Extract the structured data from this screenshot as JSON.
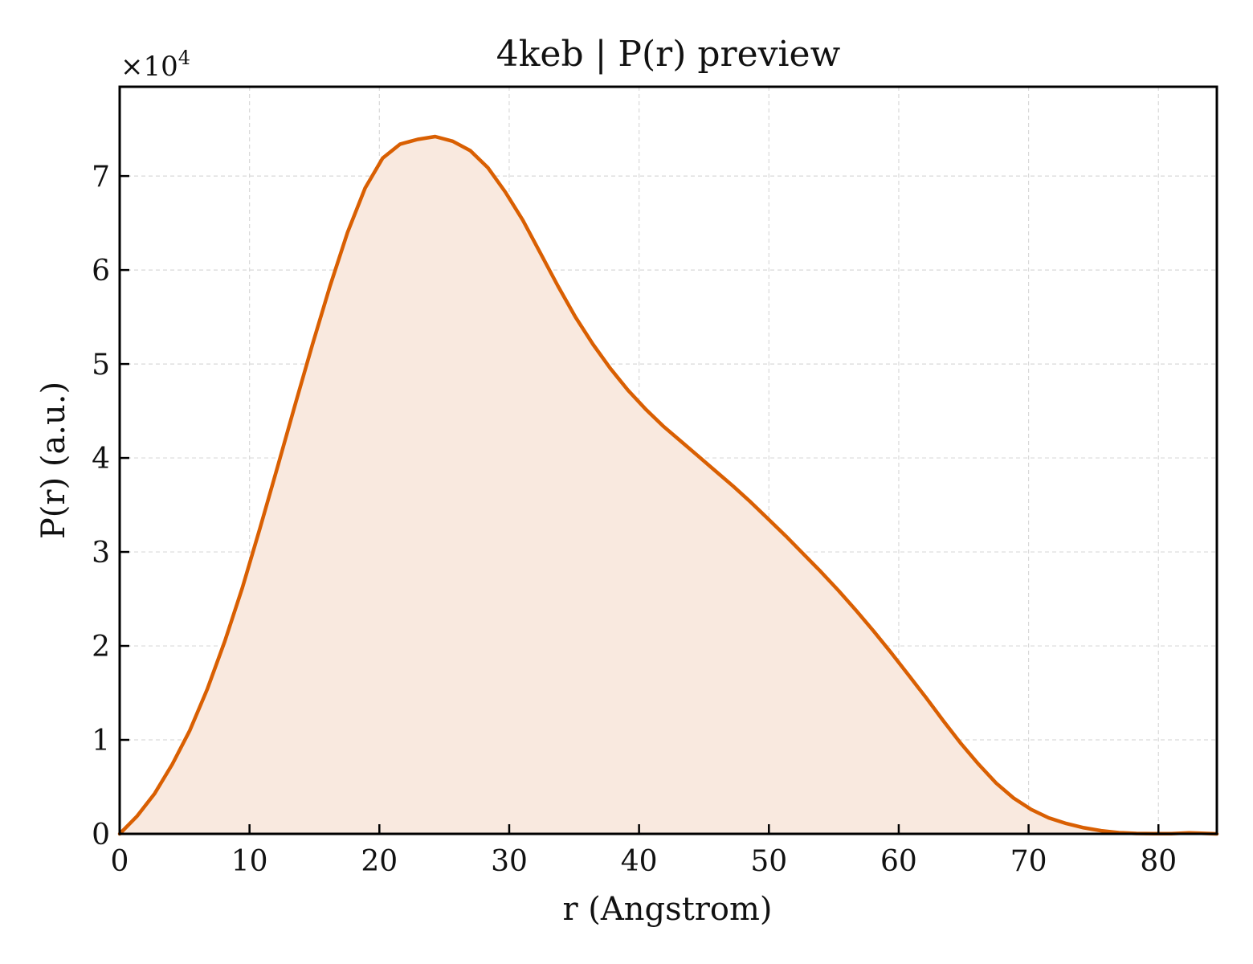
{
  "chart_data": {
    "type": "area",
    "title": "4keb | P(r) preview",
    "xlabel": "r (Angstrom)",
    "ylabel": "P(r) (a.u.)",
    "y_multiplier": "×10",
    "y_multiplier_exponent": "4",
    "xlim": [
      0,
      84.5
    ],
    "ylim": [
      0,
      79500
    ],
    "x_ticks": [
      0,
      10,
      20,
      30,
      40,
      50,
      60,
      70,
      80
    ],
    "y_ticks": [
      0,
      10000,
      20000,
      30000,
      40000,
      50000,
      60000,
      70000
    ],
    "y_tick_labels": [
      "0",
      "1",
      "2",
      "3",
      "4",
      "5",
      "6",
      "7"
    ],
    "grid": true,
    "colors": {
      "line": "#d95f02",
      "fill": "#f9e9df",
      "grid": "#d9d9d9"
    },
    "series": [
      {
        "x": [
          0,
          1.35,
          2.7,
          4.05,
          5.4,
          6.75,
          8.1,
          9.45,
          10.8,
          12.15,
          13.5,
          14.85,
          16.2,
          17.55,
          18.9,
          20.25,
          21.6,
          22.95,
          24.3,
          25.65,
          27.0,
          28.35,
          29.7,
          31.05,
          32.4,
          33.75,
          35.1,
          36.45,
          37.8,
          39.15,
          40.5,
          41.85,
          43.2,
          44.55,
          45.9,
          47.25,
          48.6,
          49.95,
          51.3,
          52.65,
          54.0,
          55.35,
          56.7,
          58.05,
          59.4,
          60.75,
          62.1,
          63.45,
          64.8,
          66.15,
          67.5,
          68.85,
          70.2,
          71.55,
          72.9,
          74.25,
          75.6,
          76.95,
          78.3,
          79.65,
          81.0,
          82.35,
          83.1,
          84.5
        ],
        "y": [
          0,
          1900,
          4300,
          7400,
          11000,
          15400,
          20500,
          26200,
          32500,
          39000,
          45600,
          52100,
          58300,
          64000,
          68700,
          71900,
          73400,
          73900,
          74200,
          73700,
          72700,
          70900,
          68300,
          65300,
          61800,
          58300,
          55000,
          52100,
          49500,
          47200,
          45200,
          43400,
          41800,
          40200,
          38600,
          37000,
          35300,
          33500,
          31700,
          29800,
          27900,
          25900,
          23800,
          21600,
          19300,
          16900,
          14500,
          12000,
          9600,
          7400,
          5400,
          3800,
          2600,
          1700,
          1100,
          650,
          330,
          130,
          40,
          20,
          20,
          110,
          80,
          0
        ]
      }
    ]
  }
}
